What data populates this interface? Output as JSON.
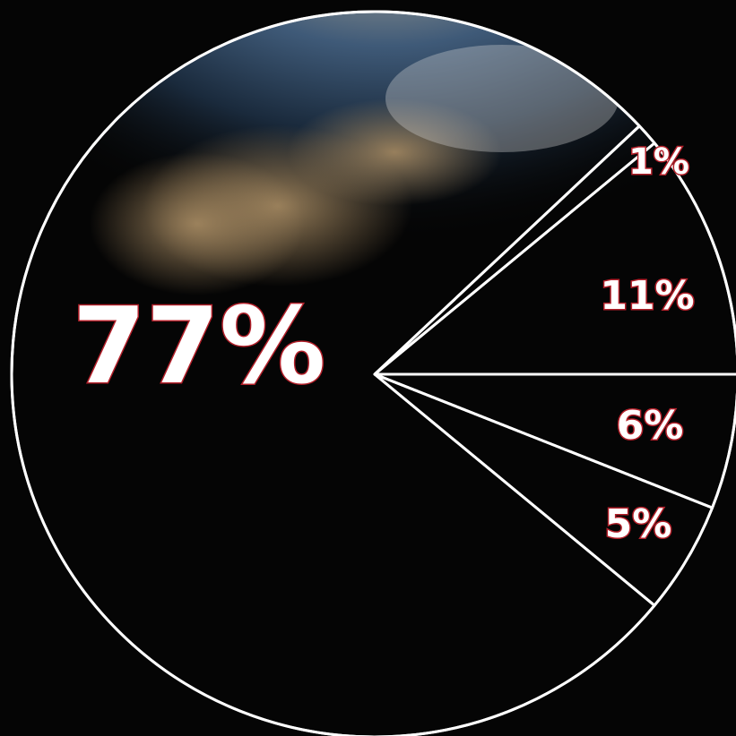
{
  "chart_data": {
    "type": "pie",
    "values": [
      77,
      1,
      11,
      6,
      5
    ],
    "value_labels": [
      "77%",
      "1%",
      "11%",
      "6%",
      "5%"
    ],
    "color": "#ffffff"
  }
}
